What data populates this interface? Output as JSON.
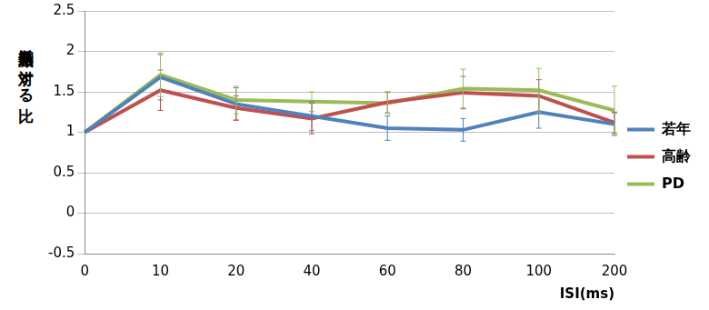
{
  "chart_data": {
    "type": "line",
    "y_label": "単発刺激に対する比",
    "x_label": "ISI(ms)",
    "categories": [
      "0",
      "10",
      "20",
      "40",
      "60",
      "80",
      "100",
      "200"
    ],
    "series": [
      {
        "name": "若年",
        "color": "#4f81bd",
        "values": [
          1,
          1.68,
          1.35,
          1.2,
          1.05,
          1.03,
          1.25,
          1.1
        ],
        "errors": [
          0,
          0.28,
          0.2,
          0.18,
          0.15,
          0.14,
          0.2,
          0.14
        ]
      },
      {
        "name": "高齢",
        "color": "#c0504d",
        "values": [
          1,
          1.52,
          1.3,
          1.17,
          1.37,
          1.49,
          1.45,
          1.12
        ],
        "errors": [
          0,
          0.25,
          0.15,
          0.19,
          0.13,
          0.2,
          0.2,
          0.13
        ]
      },
      {
        "name": "PD",
        "color": "#9bbb59",
        "values": [
          1,
          1.71,
          1.4,
          1.38,
          1.36,
          1.54,
          1.52,
          1.27
        ],
        "errors": [
          0,
          0.27,
          0.17,
          0.12,
          0.13,
          0.24,
          0.27,
          0.3
        ]
      }
    ],
    "ylim": [
      -0.5,
      2.5
    ],
    "yticks": [
      -0.5,
      0,
      0.5,
      1,
      1.5,
      2,
      2.5
    ],
    "grid": true,
    "legend": "right",
    "line_style": "solid"
  }
}
